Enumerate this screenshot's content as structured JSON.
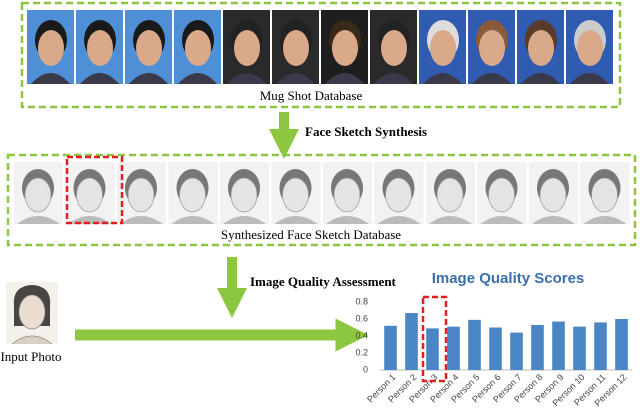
{
  "labels": {
    "mug_shot": "Mug Shot Database",
    "synthesis": "Face Sketch Synthesis",
    "sketch_db": "Synthesized Face Sketch Database",
    "assessment": "Image Quality Assessment",
    "input": "Input Photo"
  },
  "chart_data": {
    "type": "bar",
    "title": "Image Quality Scores",
    "categories": [
      "Person 1",
      "Person 2",
      "Person 3",
      "Person 4",
      "Person 5",
      "Person 6",
      "Person 7",
      "Person 8",
      "Person 9",
      "Person 10",
      "Person 11",
      "Person 12"
    ],
    "values": [
      0.52,
      0.67,
      0.49,
      0.51,
      0.59,
      0.5,
      0.44,
      0.53,
      0.57,
      0.51,
      0.56,
      0.6
    ],
    "color": "#4a86c5",
    "ylim": [
      0,
      0.8
    ],
    "yticks": [
      0,
      0.2,
      0.4,
      0.6,
      0.8
    ],
    "grid": false
  }
}
